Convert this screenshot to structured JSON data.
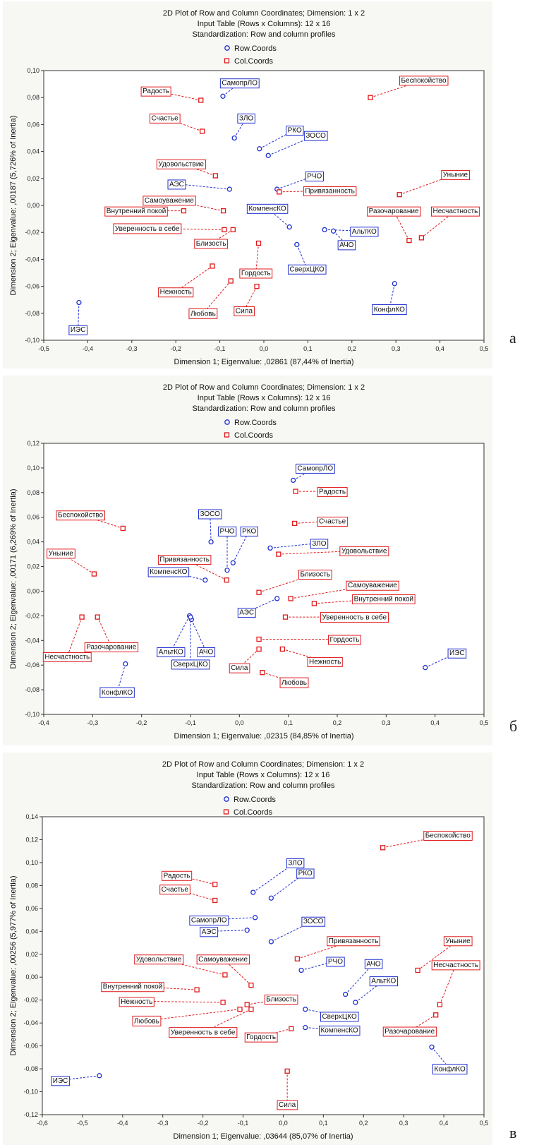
{
  "chart_data": [
    {
      "type": "scatter",
      "panel_letter": "а",
      "title": "2D Plot of Row and Column Coordinates; Dimension:  1 x  2",
      "subtitle_lines": [
        "Input Table (Rows x Columns): 12 x 16",
        "Standardization: Row and column profiles"
      ],
      "legend": [
        "Row.Coords",
        "Col.Coords"
      ],
      "xlabel": "Dimension 1; Eigenvalue: ,02861 (87,44% of Inertia)",
      "ylabel": "Dimension 2; Eigenvalue: ,00187 (5,726% of Inertia)",
      "xlim": [
        -0.5,
        0.5
      ],
      "ylim": [
        -0.1,
        0.1
      ],
      "xticks": [
        -0.5,
        -0.4,
        -0.3,
        -0.2,
        -0.1,
        0.0,
        0.1,
        0.2,
        0.3,
        0.4,
        0.5
      ],
      "yticks": [
        -0.1,
        -0.08,
        -0.06,
        -0.04,
        -0.02,
        0.0,
        0.02,
        0.04,
        0.06,
        0.08,
        0.1
      ],
      "xtick_labels": [
        "-0,5",
        "-0,4",
        "-0,3",
        "-0,2",
        "-0,1",
        "0,0",
        "0,1",
        "0,2",
        "0,3",
        "0,4",
        "0,5"
      ],
      "ytick_labels": [
        "-0,10",
        "-0,08",
        "-0,06",
        "-0,04",
        "-0,02",
        "0,00",
        "0,02",
        "0,04",
        "0,06",
        "0,08",
        "0,10"
      ],
      "series": [
        {
          "name": "Row.Coords",
          "color": "#1f2fd0",
          "marker": "circle",
          "points": [
            {
              "label": "СамопрЛО",
              "x": -0.093,
              "y": 0.081,
              "lx": -0.055,
              "ly": 0.091
            },
            {
              "label": "ЗЛО",
              "x": -0.067,
              "y": 0.05,
              "lx": -0.04,
              "ly": 0.065
            },
            {
              "label": "РКО",
              "x": -0.01,
              "y": 0.042,
              "lx": 0.07,
              "ly": 0.056
            },
            {
              "label": "ЗОСО",
              "x": 0.01,
              "y": 0.037,
              "lx": 0.118,
              "ly": 0.052
            },
            {
              "label": "АЭС",
              "x": -0.078,
              "y": 0.012,
              "lx": -0.198,
              "ly": 0.016
            },
            {
              "label": "РЧО",
              "x": 0.03,
              "y": 0.012,
              "lx": 0.115,
              "ly": 0.022
            },
            {
              "label": "КомпенсКО",
              "x": 0.058,
              "y": -0.016,
              "lx": 0.008,
              "ly": -0.002
            },
            {
              "label": "АльтКО",
              "x": 0.138,
              "y": -0.018,
              "lx": 0.228,
              "ly": -0.019
            },
            {
              "label": "АЧО",
              "x": 0.158,
              "y": -0.019,
              "lx": 0.188,
              "ly": -0.029
            },
            {
              "label": "СверхЦКО",
              "x": 0.075,
              "y": -0.029,
              "lx": 0.098,
              "ly": -0.047
            },
            {
              "label": "КонфлКО",
              "x": 0.297,
              "y": -0.058,
              "lx": 0.285,
              "ly": -0.077
            },
            {
              "label": "ИЭС",
              "x": -0.42,
              "y": -0.072,
              "lx": -0.422,
              "ly": -0.092
            }
          ]
        },
        {
          "name": "Col.Coords",
          "color": "#e0191b",
          "marker": "square",
          "points": [
            {
              "label": "Радость",
              "x": -0.143,
              "y": 0.078,
              "lx": -0.245,
              "ly": 0.085
            },
            {
              "label": "Беспокойство",
              "x": 0.242,
              "y": 0.08,
              "lx": 0.363,
              "ly": 0.093
            },
            {
              "label": "Счастье",
              "x": -0.14,
              "y": 0.055,
              "lx": -0.225,
              "ly": 0.065
            },
            {
              "label": "Удовольствие",
              "x": -0.11,
              "y": 0.022,
              "lx": -0.188,
              "ly": 0.031
            },
            {
              "label": "Привязанность",
              "x": 0.035,
              "y": 0.01,
              "lx": 0.15,
              "ly": 0.011
            },
            {
              "label": "Уныние",
              "x": 0.308,
              "y": 0.008,
              "lx": 0.435,
              "ly": 0.023
            },
            {
              "label": "Самоуважение",
              "x": -0.092,
              "y": -0.004,
              "lx": -0.215,
              "ly": 0.004
            },
            {
              "label": "Внутренний покой",
              "x": -0.182,
              "y": -0.004,
              "lx": -0.29,
              "ly": -0.004
            },
            {
              "label": "Разочарование",
              "x": 0.33,
              "y": -0.026,
              "lx": 0.295,
              "ly": -0.004
            },
            {
              "label": "Несчастность",
              "x": 0.358,
              "y": -0.024,
              "lx": 0.435,
              "ly": -0.004
            },
            {
              "label": "Уверенность в себе",
              "x": -0.09,
              "y": -0.018,
              "lx": -0.265,
              "ly": -0.017
            },
            {
              "label": "Близость",
              "x": -0.07,
              "y": -0.018,
              "lx": -0.12,
              "ly": -0.028
            },
            {
              "label": "Гордость",
              "x": -0.012,
              "y": -0.028,
              "lx": -0.018,
              "ly": -0.05
            },
            {
              "label": "Нежность",
              "x": -0.117,
              "y": -0.045,
              "lx": -0.2,
              "ly": -0.064
            },
            {
              "label": "Любовь",
              "x": -0.075,
              "y": -0.056,
              "lx": -0.138,
              "ly": -0.08
            },
            {
              "label": "Сила",
              "x": -0.016,
              "y": -0.06,
              "lx": -0.045,
              "ly": -0.078
            }
          ]
        }
      ]
    },
    {
      "type": "scatter",
      "panel_letter": "б",
      "title": "2D Plot of Row and Column Coordinates; Dimension:  1 x  2",
      "subtitle_lines": [
        "Input Table (Rows x Columns): 12 x 16",
        "Standardization: Row and column profiles"
      ],
      "legend": [
        "Row.Coords",
        "Col.Coords"
      ],
      "xlabel": "Dimension 1; Eigenvalue: ,02315 (84,85% of Inertia)",
      "ylabel": "Dimension 2; Eigenvalue: ,00171 (6,269% of Inertia)",
      "xlim": [
        -0.4,
        0.5
      ],
      "ylim": [
        -0.1,
        0.12
      ],
      "xticks": [
        -0.4,
        -0.3,
        -0.2,
        -0.1,
        0.0,
        0.1,
        0.2,
        0.3,
        0.4,
        0.5
      ],
      "yticks": [
        -0.1,
        -0.08,
        -0.06,
        -0.04,
        -0.02,
        0.0,
        0.02,
        0.04,
        0.06,
        0.08,
        0.1,
        0.12
      ],
      "xtick_labels": [
        "-0,4",
        "-0,3",
        "-0,2",
        "-0,1",
        "0,0",
        "0,1",
        "0,2",
        "0,3",
        "0,4",
        "0,5"
      ],
      "ytick_labels": [
        "-0,10",
        "-0,08",
        "-0,06",
        "-0,04",
        "-0,02",
        "0,00",
        "0,02",
        "0,04",
        "0,06",
        "0,08",
        "0,10",
        "0,12"
      ],
      "series": [
        {
          "name": "Row.Coords",
          "color": "#1f2fd0",
          "marker": "circle",
          "points": [
            {
              "label": "СамопрЛО",
              "x": 0.11,
              "y": 0.09,
              "lx": 0.155,
              "ly": 0.1
            },
            {
              "label": "ЗОСО",
              "x": -0.058,
              "y": 0.04,
              "lx": -0.06,
              "ly": 0.063
            },
            {
              "label": "РЧО",
              "x": -0.025,
              "y": 0.017,
              "lx": -0.025,
              "ly": 0.049
            },
            {
              "label": "РКО",
              "x": -0.013,
              "y": 0.023,
              "lx": 0.02,
              "ly": 0.049
            },
            {
              "label": "ЗЛО",
              "x": 0.063,
              "y": 0.035,
              "lx": 0.163,
              "ly": 0.039
            },
            {
              "label": "КомпенсКО",
              "x": -0.07,
              "y": 0.009,
              "lx": -0.145,
              "ly": 0.016
            },
            {
              "label": "АЭС",
              "x": 0.077,
              "y": -0.006,
              "lx": 0.015,
              "ly": -0.017
            },
            {
              "label": "АльтКО",
              "x": -0.102,
              "y": -0.02,
              "lx": -0.14,
              "ly": -0.049
            },
            {
              "label": "АЧО",
              "x": -0.098,
              "y": -0.023,
              "lx": -0.068,
              "ly": -0.049
            },
            {
              "label": "СверхЦКО",
              "x": -0.1,
              "y": -0.021,
              "lx": -0.1,
              "ly": -0.059
            },
            {
              "label": "КонфлКО",
              "x": -0.233,
              "y": -0.059,
              "lx": -0.25,
              "ly": -0.082
            },
            {
              "label": "ИЭС",
              "x": 0.38,
              "y": -0.062,
              "lx": 0.445,
              "ly": -0.05
            }
          ]
        },
        {
          "name": "Col.Coords",
          "color": "#e0191b",
          "marker": "square",
          "points": [
            {
              "label": "Беспокойство",
              "x": -0.238,
              "y": 0.051,
              "lx": -0.325,
              "ly": 0.062
            },
            {
              "label": "Радость",
              "x": 0.115,
              "y": 0.081,
              "lx": 0.19,
              "ly": 0.081
            },
            {
              "label": "Счастье",
              "x": 0.113,
              "y": 0.055,
              "lx": 0.19,
              "ly": 0.057
            },
            {
              "label": "Уныние",
              "x": -0.297,
              "y": 0.014,
              "lx": -0.365,
              "ly": 0.031
            },
            {
              "label": "Удовольствие",
              "x": 0.08,
              "y": 0.03,
              "lx": 0.255,
              "ly": 0.033
            },
            {
              "label": "Привязанность",
              "x": -0.026,
              "y": 0.009,
              "lx": -0.112,
              "ly": 0.026
            },
            {
              "label": "Близость",
              "x": 0.04,
              "y": -0.001,
              "lx": 0.155,
              "ly": 0.014
            },
            {
              "label": "Самоуважение",
              "x": 0.105,
              "y": -0.006,
              "lx": 0.272,
              "ly": 0.005
            },
            {
              "label": "Внутренний покой",
              "x": 0.153,
              "y": -0.01,
              "lx": 0.295,
              "ly": -0.006
            },
            {
              "label": "Уверенность в себе",
              "x": 0.094,
              "y": -0.021,
              "lx": 0.235,
              "ly": -0.021
            },
            {
              "label": "Гордость",
              "x": 0.04,
              "y": -0.039,
              "lx": 0.215,
              "ly": -0.039
            },
            {
              "label": "Разочарование",
              "x": -0.29,
              "y": -0.021,
              "lx": -0.262,
              "ly": -0.045
            },
            {
              "label": "Несчастность",
              "x": -0.322,
              "y": -0.021,
              "lx": -0.352,
              "ly": -0.053
            },
            {
              "label": "Нежность",
              "x": 0.088,
              "y": -0.047,
              "lx": 0.175,
              "ly": -0.057
            },
            {
              "label": "Сила",
              "x": 0.04,
              "y": -0.047,
              "lx": 0.0,
              "ly": -0.062
            },
            {
              "label": "Любовь",
              "x": 0.047,
              "y": -0.066,
              "lx": 0.112,
              "ly": -0.074
            }
          ]
        }
      ]
    },
    {
      "type": "scatter",
      "panel_letter": "в",
      "title": "2D Plot of Row and Column Coordinates; Dimension:  1 x  2",
      "subtitle_lines": [
        "Input Table (Rows x Columns): 12 x 16",
        "Standardization: Row and column profiles"
      ],
      "legend": [
        "Row.Coords",
        "Col.Coords"
      ],
      "xlabel": "Dimension 1; Eigenvalue: ,03644 (85,07% of Inertia)",
      "ylabel": "Dimension 2; Eigenvalue: ,00256 (5,977% of Inertia)",
      "xlim": [
        -0.6,
        0.5
      ],
      "ylim": [
        -0.12,
        0.14
      ],
      "xticks": [
        -0.6,
        -0.5,
        -0.4,
        -0.3,
        -0.2,
        -0.1,
        0.0,
        0.1,
        0.2,
        0.3,
        0.4,
        0.5
      ],
      "yticks": [
        -0.12,
        -0.1,
        -0.08,
        -0.06,
        -0.04,
        -0.02,
        0.0,
        0.02,
        0.04,
        0.06,
        0.08,
        0.1,
        0.12,
        0.14
      ],
      "xtick_labels": [
        "-0,6",
        "-0,5",
        "-0,4",
        "-0,3",
        "-0,2",
        "-0,1",
        "0,0",
        "0,1",
        "0,2",
        "0,3",
        "0,4",
        "0,5"
      ],
      "ytick_labels": [
        "-0,12",
        "-0,10",
        "-0,08",
        "-0,06",
        "-0,04",
        "-0,02",
        "0,00",
        "0,02",
        "0,04",
        "0,06",
        "0,08",
        "0,10",
        "0,12",
        "0,14"
      ],
      "series": [
        {
          "name": "Row.Coords",
          "color": "#1f2fd0",
          "marker": "circle",
          "points": [
            {
              "label": "ЗЛО",
              "x": -0.075,
              "y": 0.074,
              "lx": 0.03,
              "ly": 0.1
            },
            {
              "label": "РКО",
              "x": -0.03,
              "y": 0.069,
              "lx": 0.055,
              "ly": 0.091
            },
            {
              "label": "СамопрЛО",
              "x": -0.07,
              "y": 0.052,
              "lx": -0.185,
              "ly": 0.05
            },
            {
              "label": "АЭС",
              "x": -0.09,
              "y": 0.041,
              "lx": -0.185,
              "ly": 0.04
            },
            {
              "label": "ЗОСО",
              "x": -0.03,
              "y": 0.031,
              "lx": 0.075,
              "ly": 0.049
            },
            {
              "label": "РЧО",
              "x": 0.045,
              "y": 0.006,
              "lx": 0.13,
              "ly": 0.014
            },
            {
              "label": "АЧО",
              "x": 0.155,
              "y": -0.015,
              "lx": 0.225,
              "ly": 0.012
            },
            {
              "label": "АльтКО",
              "x": 0.18,
              "y": -0.022,
              "lx": 0.25,
              "ly": -0.003
            },
            {
              "label": "СверхЦКО",
              "x": 0.055,
              "y": -0.028,
              "lx": 0.14,
              "ly": -0.034
            },
            {
              "label": "КомпенсКО",
              "x": 0.055,
              "y": -0.044,
              "lx": 0.14,
              "ly": -0.046
            },
            {
              "label": "КонфлКО",
              "x": 0.37,
              "y": -0.061,
              "lx": 0.415,
              "ly": -0.08
            },
            {
              "label": "ИЭС",
              "x": -0.458,
              "y": -0.086,
              "lx": -0.555,
              "ly": -0.09
            }
          ]
        },
        {
          "name": "Col.Coords",
          "color": "#e0191b",
          "marker": "square",
          "points": [
            {
              "label": "Беспокойство",
              "x": 0.248,
              "y": 0.113,
              "lx": 0.41,
              "ly": 0.124
            },
            {
              "label": "Радость",
              "x": -0.17,
              "y": 0.081,
              "lx": -0.265,
              "ly": 0.089
            },
            {
              "label": "Счастье",
              "x": -0.17,
              "y": 0.067,
              "lx": -0.27,
              "ly": 0.077
            },
            {
              "label": "Привязанность",
              "x": 0.035,
              "y": 0.016,
              "lx": 0.175,
              "ly": 0.032
            },
            {
              "label": "Уныние",
              "x": 0.335,
              "y": 0.006,
              "lx": 0.435,
              "ly": 0.032
            },
            {
              "label": "Удовольствие",
              "x": -0.145,
              "y": 0.002,
              "lx": -0.31,
              "ly": 0.016
            },
            {
              "label": "Самоуважение",
              "x": -0.08,
              "y": -0.007,
              "lx": -0.15,
              "ly": 0.016
            },
            {
              "label": "Несчастность",
              "x": 0.39,
              "y": -0.024,
              "lx": 0.43,
              "ly": 0.011
            },
            {
              "label": "Внутренний покой",
              "x": -0.215,
              "y": -0.011,
              "lx": -0.375,
              "ly": -0.008
            },
            {
              "label": "Нежность",
              "x": -0.15,
              "y": -0.022,
              "lx": -0.365,
              "ly": -0.021
            },
            {
              "label": "Близость",
              "x": -0.09,
              "y": -0.024,
              "lx": -0.005,
              "ly": -0.019
            },
            {
              "label": "Любовь",
              "x": -0.108,
              "y": -0.028,
              "lx": -0.34,
              "ly": -0.038
            },
            {
              "label": "Уверенность в себе",
              "x": -0.08,
              "y": -0.028,
              "lx": -0.2,
              "ly": -0.048
            },
            {
              "label": "Гордость",
              "x": 0.02,
              "y": -0.045,
              "lx": -0.055,
              "ly": -0.052
            },
            {
              "label": "Разочарование",
              "x": 0.38,
              "y": -0.033,
              "lx": 0.315,
              "ly": -0.047
            },
            {
              "label": "Сила",
              "x": 0.01,
              "y": -0.082,
              "lx": 0.01,
              "ly": -0.111
            }
          ]
        }
      ]
    }
  ]
}
